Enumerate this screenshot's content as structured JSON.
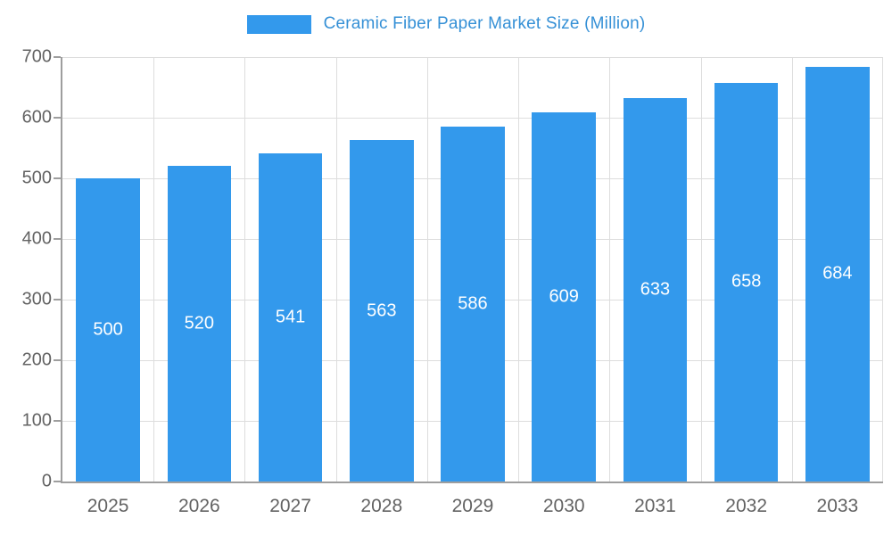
{
  "chart_data": {
    "type": "bar",
    "title": "Ceramic Fiber Paper Market Size (Million)",
    "categories": [
      "2025",
      "2026",
      "2027",
      "2028",
      "2029",
      "2030",
      "2031",
      "2032",
      "2033"
    ],
    "values": [
      500,
      520,
      541,
      563,
      586,
      609,
      633,
      658,
      684
    ],
    "xlabel": "",
    "ylabel": "",
    "ylim": [
      0,
      700
    ],
    "yticks": [
      0,
      100,
      200,
      300,
      400,
      500,
      600,
      700
    ],
    "grid": true,
    "legend_position": "top",
    "bar_color": "#3399ec",
    "bar_label_color": "#ffffff",
    "title_color": "#3590d6",
    "axis_text_color": "#636363",
    "axis_line_color": "#9e9e9e",
    "gridline_color": "#dddddd"
  }
}
